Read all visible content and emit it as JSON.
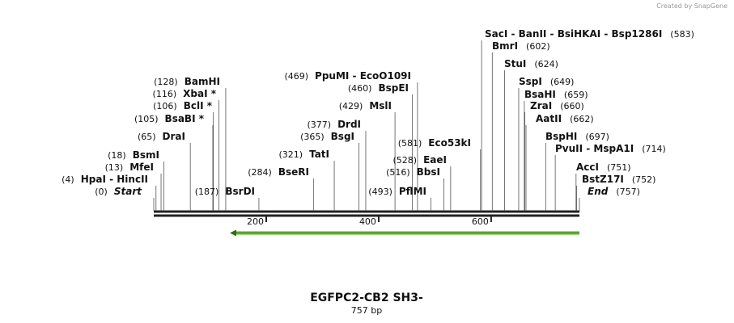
{
  "credit": "Created by SnapGene",
  "map": {
    "title": "EGFPC2-CB2 SH3-",
    "length": 757,
    "length_label": "757 bp",
    "ruler_ticks": [
      200,
      400,
      600
    ],
    "sites": [
      {
        "name": "Start",
        "position": 0,
        "position_label": "(0)",
        "italic": true
      },
      {
        "name": "HpaI  - HincII",
        "position": 4,
        "position_label": "(4)"
      },
      {
        "name": "MfeI",
        "position": 13,
        "position_label": "(13)"
      },
      {
        "name": "BsmI",
        "position": 18,
        "position_label": "(18)"
      },
      {
        "name": "DraI",
        "position": 65,
        "position_label": "(65)"
      },
      {
        "name": "BsaBI *",
        "position": 105,
        "position_label": "(105)"
      },
      {
        "name": "BclI *",
        "position": 106,
        "position_label": "(106)"
      },
      {
        "name": "XbaI *",
        "position": 116,
        "position_label": "(116)"
      },
      {
        "name": "BamHI",
        "position": 128,
        "position_label": "(128)"
      },
      {
        "name": "BsrDI",
        "position": 187,
        "position_label": "(187)"
      },
      {
        "name": "BseRI",
        "position": 284,
        "position_label": "(284)"
      },
      {
        "name": "TatI",
        "position": 321,
        "position_label": "(321)"
      },
      {
        "name": "BsgI",
        "position": 365,
        "position_label": "(365)"
      },
      {
        "name": "DrdI",
        "position": 377,
        "position_label": "(377)"
      },
      {
        "name": "MslI",
        "position": 429,
        "position_label": "(429)"
      },
      {
        "name": "BspEI",
        "position": 460,
        "position_label": "(460)"
      },
      {
        "name": "PpuMI  - EcoO109I",
        "position": 469,
        "position_label": "(469)"
      },
      {
        "name": "PflMI",
        "position": 493,
        "position_label": "(493)"
      },
      {
        "name": "BbsI",
        "position": 516,
        "position_label": "(516)"
      },
      {
        "name": "EaeI",
        "position": 528,
        "position_label": "(528)"
      },
      {
        "name": "Eco53kI",
        "position": 581,
        "position_label": "(581)"
      },
      {
        "name": "SacI  - BanII  - BsiHKAI  - Bsp1286I",
        "position": 583,
        "position_label": "(583)"
      },
      {
        "name": "BmrI",
        "position": 602,
        "position_label": "(602)"
      },
      {
        "name": "StuI",
        "position": 624,
        "position_label": "(624)"
      },
      {
        "name": "SspI",
        "position": 649,
        "position_label": "(649)"
      },
      {
        "name": "BsaHI",
        "position": 659,
        "position_label": "(659)"
      },
      {
        "name": "ZraI",
        "position": 660,
        "position_label": "(660)"
      },
      {
        "name": "AatII",
        "position": 662,
        "position_label": "(662)"
      },
      {
        "name": "BspHI",
        "position": 697,
        "position_label": "(697)"
      },
      {
        "name": "PvuII  - MspA1I",
        "position": 714,
        "position_label": "(714)"
      },
      {
        "name": "AccI",
        "position": 751,
        "position_label": "(751)"
      },
      {
        "name": "BstZ17I",
        "position": 752,
        "position_label": "(752)"
      },
      {
        "name": "End",
        "position": 757,
        "position_label": "(757)",
        "italic": true
      }
    ]
  }
}
